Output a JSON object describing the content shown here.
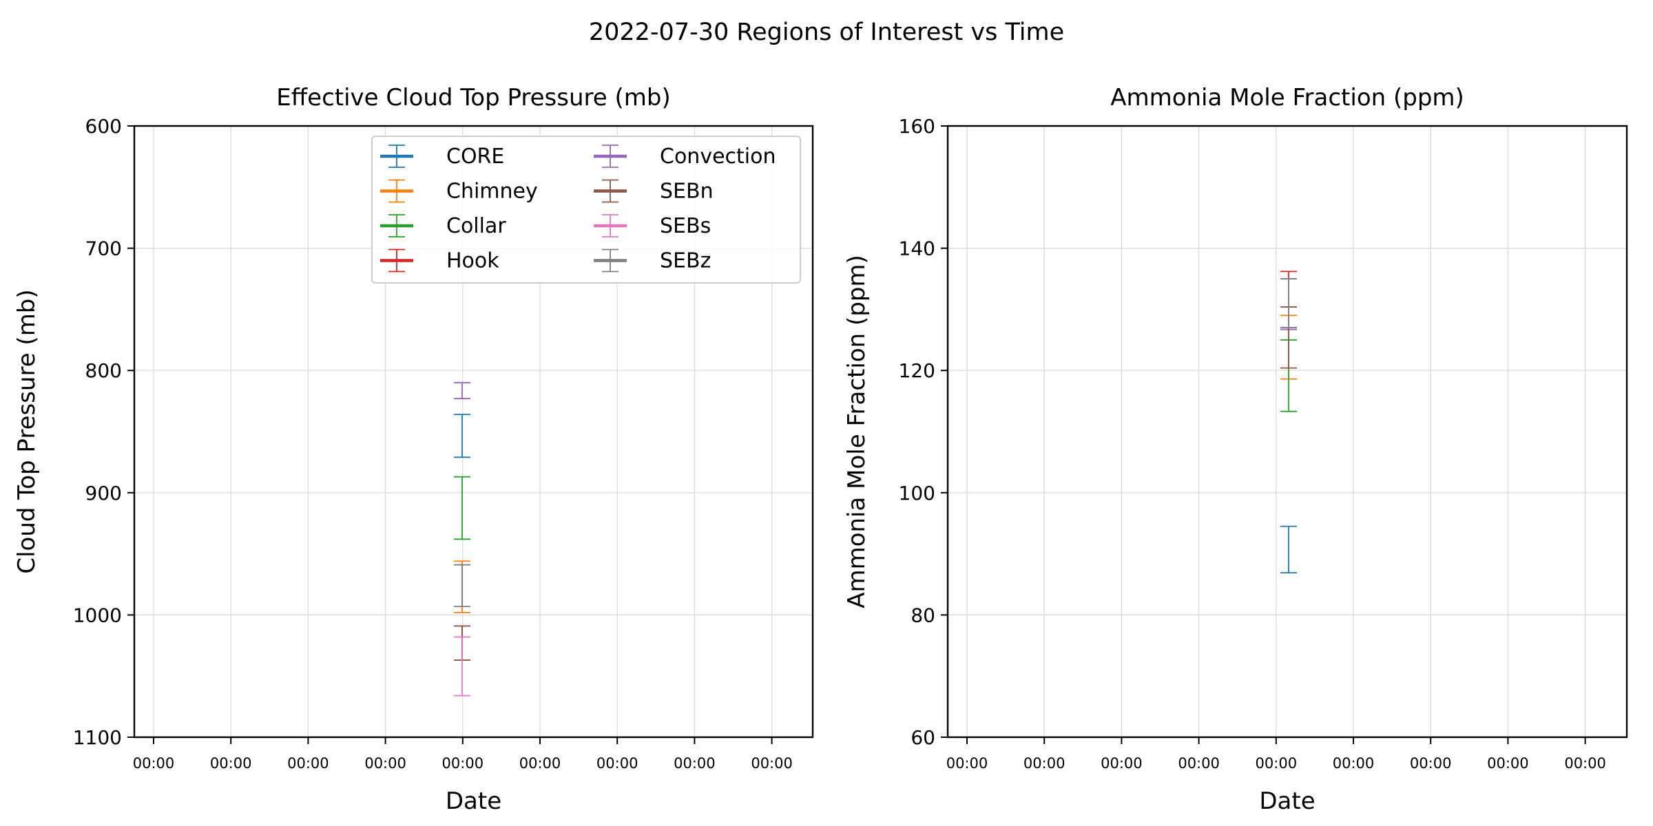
{
  "figure": {
    "title": "2022-07-30 Regions of Interest vs Time"
  },
  "chart_data": [
    {
      "type": "errorbar",
      "title": "Effective Cloud Top Pressure (mb)",
      "xlabel": "Date",
      "ylabel": "Cloud Top Pressure (mb)",
      "ylim": [
        1100,
        600
      ],
      "y_inverted": true,
      "yticks": [
        600,
        700,
        800,
        900,
        1000,
        1100
      ],
      "ytick_labels": [
        "600",
        "700",
        "800",
        "900",
        "1000",
        "1100"
      ],
      "xtick_labels": [
        "00:00",
        "00:00",
        "00:00",
        "00:00",
        "00:00",
        "00:00",
        "00:00",
        "00:00",
        "00:00"
      ],
      "grid": true,
      "legend": {
        "placement": "top-right",
        "columns": 2
      },
      "series": [
        {
          "name": "CORE",
          "color": "#1f77b4",
          "low": 836,
          "high": 871
        },
        {
          "name": "Chimney",
          "color": "#ff7f0e",
          "low": 956,
          "high": 998
        },
        {
          "name": "Collar",
          "color": "#2ca02c",
          "low": 887,
          "high": 938
        },
        {
          "name": "Hook",
          "color": "#d62728",
          "low": 1009,
          "high": 1037
        },
        {
          "name": "Convection",
          "color": "#9467bd",
          "low": 810,
          "high": 823
        },
        {
          "name": "SEBn",
          "color": "#8c564b",
          "low": 1009,
          "high": 1037
        },
        {
          "name": "SEBs",
          "color": "#e377c2",
          "low": 1018,
          "high": 1066
        },
        {
          "name": "SEBz",
          "color": "#7f7f7f",
          "low": 959,
          "high": 993
        }
      ]
    },
    {
      "type": "errorbar",
      "title": "Ammonia Mole Fraction (ppm)",
      "xlabel": "Date",
      "ylabel": "Ammonia Mole Fraction (ppm)",
      "ylim": [
        60,
        160
      ],
      "y_inverted": false,
      "yticks": [
        60,
        80,
        100,
        120,
        140,
        160
      ],
      "ytick_labels": [
        "60",
        "80",
        "100",
        "120",
        "140",
        "160"
      ],
      "xtick_labels": [
        "00:00",
        "00:00",
        "00:00",
        "00:00",
        "00:00",
        "00:00",
        "00:00",
        "00:00",
        "00:00"
      ],
      "grid": true,
      "series": [
        {
          "name": "CORE",
          "color": "#1f77b4",
          "low": 86.9,
          "high": 94.5
        },
        {
          "name": "Chimney",
          "color": "#ff7f0e",
          "low": 118.6,
          "high": 129.0
        },
        {
          "name": "Collar",
          "color": "#2ca02c",
          "low": 113.3,
          "high": 125.0
        },
        {
          "name": "Hook",
          "color": "#d62728",
          "low": 130.4,
          "high": 136.2
        },
        {
          "name": "Convection",
          "color": "#9467bd",
          "low": 126.7,
          "high": 135.0
        },
        {
          "name": "SEBn",
          "color": "#8c564b",
          "low": 120.4,
          "high": 130.4
        },
        {
          "name": "SEBs",
          "color": "#e377c2",
          "low": 127.0,
          "high": 135.0
        },
        {
          "name": "SEBz",
          "color": "#7f7f7f",
          "low": 127.0,
          "high": 135.0
        }
      ]
    }
  ]
}
